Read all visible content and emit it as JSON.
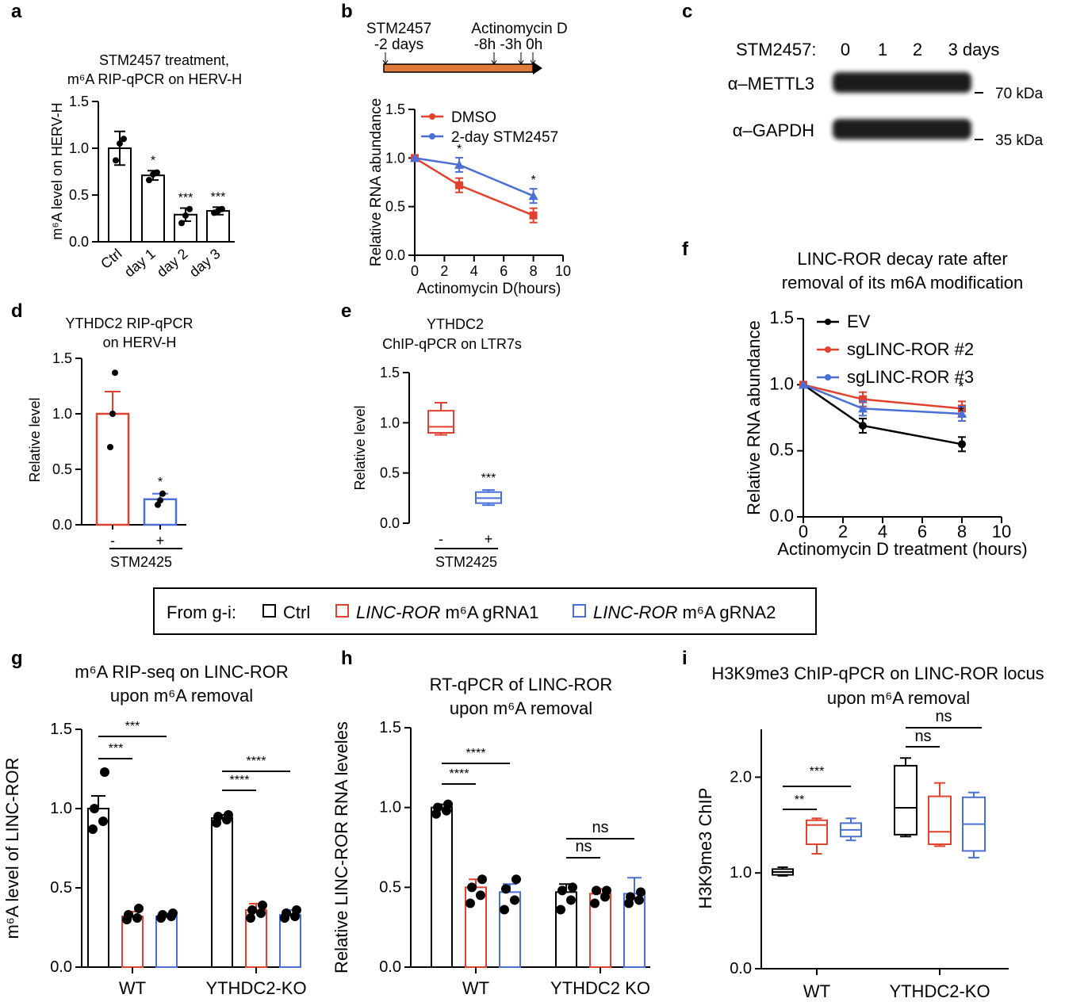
{
  "colors": {
    "black": "#000000",
    "red": "#e2412d",
    "blue": "#4a6fd6",
    "orange": "#e07b39",
    "gray": "#2b2b2b"
  },
  "panel_labels": {
    "a": "a",
    "b": "b",
    "c": "c",
    "d": "d",
    "e": "e",
    "f": "f",
    "g": "g",
    "h": "h",
    "i": "i"
  },
  "legend_box": {
    "prefix": "From g-i:",
    "items": [
      {
        "text": "Ctrl",
        "italic": "",
        "suffix": "",
        "color": "#000000"
      },
      {
        "text": "",
        "italic": "LINC-ROR",
        "suffix": " m⁶A gRNA1",
        "color": "#e2412d"
      },
      {
        "text": "",
        "italic": "LINC-ROR",
        "suffix": " m⁶A gRNA2",
        "color": "#4a6fd6"
      }
    ]
  },
  "timeline": {
    "left_label": "STM2457",
    "left_sub": "-2 days",
    "right_label": "Actinomycin D",
    "right_sub": "-8h  -3h  0h"
  },
  "blot": {
    "header": "STM2457:",
    "lanes": [
      "0",
      "1",
      "2",
      "3 days"
    ],
    "bands": [
      {
        "name": "α–METTL3",
        "kda": "70 kDa"
      },
      {
        "name": "α–GAPDH",
        "kda": "35 kDa"
      }
    ]
  },
  "chart_data": [
    {
      "id": "a",
      "type": "bar",
      "title": "STM2457 treatment,",
      "title2": "m⁶A RIP-qPCR on HERV-H",
      "categories": [
        "Ctrl",
        "day 1",
        "day 2",
        "day 3"
      ],
      "values": [
        1.0,
        0.71,
        0.29,
        0.33
      ],
      "errors": [
        0.18,
        0.05,
        0.07,
        0.04
      ],
      "points": [
        [
          0.87,
          1.05,
          1.1
        ],
        [
          0.66,
          0.72,
          0.74
        ],
        [
          0.2,
          0.28,
          0.35
        ],
        [
          0.31,
          0.33,
          0.35
        ]
      ],
      "ylabel": "m⁶A level on HERV-H",
      "ylim": [
        0,
        1.5
      ],
      "yticks": [
        "0.0",
        "0.5",
        "1.0",
        "1.5"
      ],
      "sig": [
        "",
        "*",
        "***",
        "***"
      ]
    },
    {
      "id": "b",
      "type": "line",
      "x": [
        0,
        3,
        8
      ],
      "xlabel": "Actinomycin D(hours)",
      "ylabel": "Relative RNA abundance",
      "xticks": [
        "0",
        "2",
        "4",
        "6",
        "8",
        "10"
      ],
      "yticks": [
        "0.0",
        "0.5",
        "1.0",
        "1.5"
      ],
      "xlim": [
        0,
        10
      ],
      "ylim": [
        0,
        1.5
      ],
      "series": [
        {
          "name": "DMSO",
          "values": [
            1.0,
            0.72,
            0.41
          ],
          "color": "#e2412d"
        },
        {
          "name": "2-day STM2457",
          "values": [
            1.0,
            0.93,
            0.61
          ],
          "color": "#4a6fd6"
        }
      ],
      "sig": [
        "",
        "*",
        "*"
      ]
    },
    {
      "id": "d",
      "type": "bar",
      "title": "YTHDC2 RIP-qPCR",
      "title2": "on HERV-H",
      "categories": [
        "-",
        "+"
      ],
      "values": [
        1.0,
        0.23
      ],
      "errors": [
        0.2,
        0.05
      ],
      "points": [
        [
          0.7,
          1.0,
          1.37
        ],
        [
          0.18,
          0.22,
          0.28
        ]
      ],
      "ylabel": "Relative level",
      "xgroup": "STM2425",
      "ylim": [
        0,
        1.5
      ],
      "yticks": [
        "0.0",
        "0.5",
        "1.0",
        "1.5"
      ],
      "sig": [
        "",
        "*"
      ]
    },
    {
      "id": "e",
      "type": "box",
      "title": "YTHDC2",
      "title2": "ChIP-qPCR on LTR7s",
      "categories": [
        "-",
        "+"
      ],
      "ylabel": "Relative level",
      "xgroup": "STM2425",
      "ylim": [
        0,
        1.5
      ],
      "yticks": [
        "0.0",
        "0.5",
        "1.0",
        "1.5"
      ],
      "sig": [
        "",
        "***"
      ],
      "boxes": [
        {
          "min": 0.88,
          "q1": 0.9,
          "med": 0.96,
          "q3": 1.12,
          "max": 1.2
        },
        {
          "min": 0.18,
          "q1": 0.2,
          "med": 0.25,
          "q3": 0.31,
          "max": 0.33
        }
      ]
    },
    {
      "id": "f",
      "type": "line",
      "title": "LINC-ROR decay rate after",
      "title2": "removal of its m6A modification",
      "x": [
        0,
        3,
        8
      ],
      "xlabel": "Actinomycin D treatment (hours)",
      "ylabel": "Relative RNA abundance",
      "xticks": [
        "0",
        "2",
        "4",
        "6",
        "8",
        "10"
      ],
      "yticks": [
        "0.0",
        "0.5",
        "1.0",
        "1.5"
      ],
      "xlim": [
        0,
        10
      ],
      "ylim": [
        0,
        1.5
      ],
      "series": [
        {
          "name": "EV",
          "values": [
            1.0,
            0.69,
            0.55
          ],
          "color": "#000000"
        },
        {
          "name": "sgLINC-ROR #2",
          "values": [
            1.0,
            0.89,
            0.82
          ],
          "color": "#e2412d"
        },
        {
          "name": "sgLINC-ROR #3",
          "values": [
            1.0,
            0.82,
            0.78
          ],
          "color": "#4a6fd6"
        }
      ],
      "sig": [
        "",
        "",
        "*"
      ]
    },
    {
      "id": "g",
      "type": "bar",
      "title": "m⁶A RIP-seq on LINC-ROR",
      "title2": "upon m⁶A removal",
      "groups": [
        "WT",
        "YTHDC2-KO"
      ],
      "ylabel": "m⁶A level of LINC-ROR",
      "ylim": [
        0,
        1.5
      ],
      "yticks": [
        "0.0",
        "0.5",
        "1.0",
        "1.5"
      ],
      "values": [
        [
          1.0,
          0.32,
          0.32
        ],
        [
          0.94,
          0.36,
          0.33
        ]
      ],
      "errors": [
        [
          0.08,
          0.03,
          0.02
        ],
        [
          0.02,
          0.04,
          0.03
        ]
      ],
      "points": [
        [
          [
            0.87,
            0.92,
            1.0,
            1.23
          ],
          [
            0.3,
            0.31,
            0.33,
            0.37
          ],
          [
            0.31,
            0.32,
            0.33,
            0.34
          ]
        ],
        [
          [
            0.91,
            0.93,
            0.95,
            0.96
          ],
          [
            0.31,
            0.34,
            0.36,
            0.39
          ],
          [
            0.31,
            0.32,
            0.34,
            0.36
          ]
        ]
      ],
      "brackets": [
        [
          "***",
          "***"
        ],
        [
          "****",
          "****"
        ]
      ]
    },
    {
      "id": "h",
      "type": "bar",
      "title": "RT-qPCR of LINC-ROR",
      "title2": "upon m⁶A removal",
      "groups": [
        "WT",
        "YTHDC2 KO"
      ],
      "ylabel": "Relative LINC-ROR RNA leveles",
      "ylim": [
        0,
        1.5
      ],
      "yticks": [
        "0.0",
        "0.5",
        "1.0",
        "1.5"
      ],
      "values": [
        [
          1.0,
          0.5,
          0.47
        ],
        [
          0.47,
          0.46,
          0.46
        ]
      ],
      "errors": [
        [
          0.02,
          0.05,
          0.05
        ],
        [
          0.05,
          0.03,
          0.1
        ]
      ],
      "points": [
        [
          [
            0.96,
            0.98,
            1.0,
            1.02
          ],
          [
            0.4,
            0.45,
            0.5,
            0.55
          ],
          [
            0.36,
            0.42,
            0.49,
            0.55
          ]
        ],
        [
          [
            0.36,
            0.42,
            0.48,
            0.5
          ],
          [
            0.4,
            0.44,
            0.48,
            0.48
          ],
          [
            0.4,
            0.42,
            0.44,
            0.47
          ]
        ]
      ],
      "brackets": [
        [
          "****",
          "****"
        ],
        [
          "ns",
          "ns"
        ]
      ]
    },
    {
      "id": "i",
      "type": "box",
      "title": "H3K9me3 ChIP-qPCR on LINC-ROR locus",
      "title2": "upon m⁶A removal",
      "groups": [
        "WT",
        "YTHDC2-KO"
      ],
      "ylabel": "H3K9me3 ChIP",
      "ylim": [
        0,
        2.5
      ],
      "yticks": [
        "0.0",
        "1.0",
        "2.0"
      ],
      "boxes": [
        [
          {
            "min": 0.97,
            "q1": 0.98,
            "med": 1.01,
            "q3": 1.04,
            "max": 1.06
          },
          {
            "min": 1.2,
            "q1": 1.3,
            "med": 1.5,
            "q3": 1.55,
            "max": 1.57
          },
          {
            "min": 1.34,
            "q1": 1.38,
            "med": 1.45,
            "q3": 1.52,
            "max": 1.57
          }
        ],
        [
          {
            "min": 1.38,
            "q1": 1.4,
            "med": 1.68,
            "q3": 2.12,
            "max": 2.2
          },
          {
            "min": 1.28,
            "q1": 1.3,
            "med": 1.43,
            "q3": 1.8,
            "max": 1.94
          },
          {
            "min": 1.16,
            "q1": 1.23,
            "med": 1.51,
            "q3": 1.79,
            "max": 1.84
          }
        ]
      ],
      "brackets": [
        [
          "**",
          "***"
        ],
        [
          "ns",
          "ns"
        ]
      ]
    }
  ]
}
